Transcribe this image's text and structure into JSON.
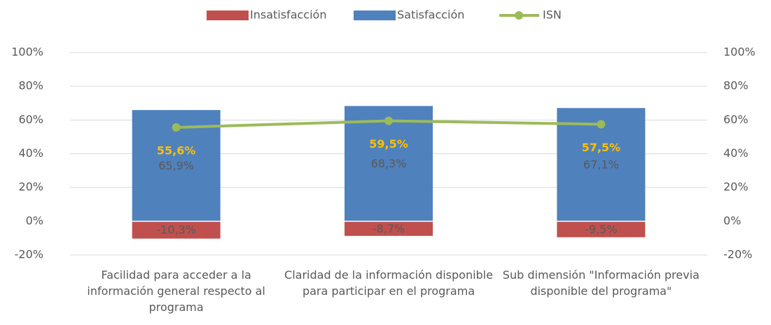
{
  "chart_data": {
    "type": "bar",
    "stacked": true,
    "categories": [
      "Facilidad para acceder a la información general respecto al programa",
      "Claridad de la información disponible para participar en el programa",
      "Sub dimensión \"Información previa disponible del programa\""
    ],
    "series": [
      {
        "name": "Insatisfacción",
        "color": "#c0504d",
        "values": [
          -10.3,
          -8.7,
          -9.5
        ],
        "value_labels": [
          "-10,3%",
          "-8,7%",
          "-9,5%"
        ]
      },
      {
        "name": "Satisfacción",
        "color": "#4f81bd",
        "values": [
          65.9,
          68.3,
          67.1
        ],
        "value_labels": [
          "65,9%",
          "68,3%",
          "67,1%"
        ]
      },
      {
        "name": "ISN",
        "type": "line",
        "color": "#9bbb59",
        "label_color": "#ffc000",
        "values": [
          55.6,
          59.5,
          57.5
        ],
        "value_labels": [
          "55,6%",
          "59,5%",
          "57,5%"
        ]
      }
    ],
    "ylim": [
      -20,
      100
    ],
    "yticks": [
      {
        "value": -20,
        "label": "-20%"
      },
      {
        "value": 0,
        "label": "0%"
      },
      {
        "value": 20,
        "label": "20%"
      },
      {
        "value": 40,
        "label": "40%"
      },
      {
        "value": 60,
        "label": "60%"
      },
      {
        "value": 80,
        "label": "80%"
      },
      {
        "value": 100,
        "label": "100%"
      }
    ],
    "y2lim": [
      -20,
      100
    ],
    "y2ticks": [
      {
        "value": -20,
        "label": "-20%"
      },
      {
        "value": 0,
        "label": "0%"
      },
      {
        "value": 20,
        "label": "20%"
      },
      {
        "value": 40,
        "label": "40%"
      },
      {
        "value": 60,
        "label": "60%"
      },
      {
        "value": 80,
        "label": "80%"
      },
      {
        "value": 100,
        "label": "100%"
      }
    ],
    "grid": true,
    "legend": "top"
  }
}
